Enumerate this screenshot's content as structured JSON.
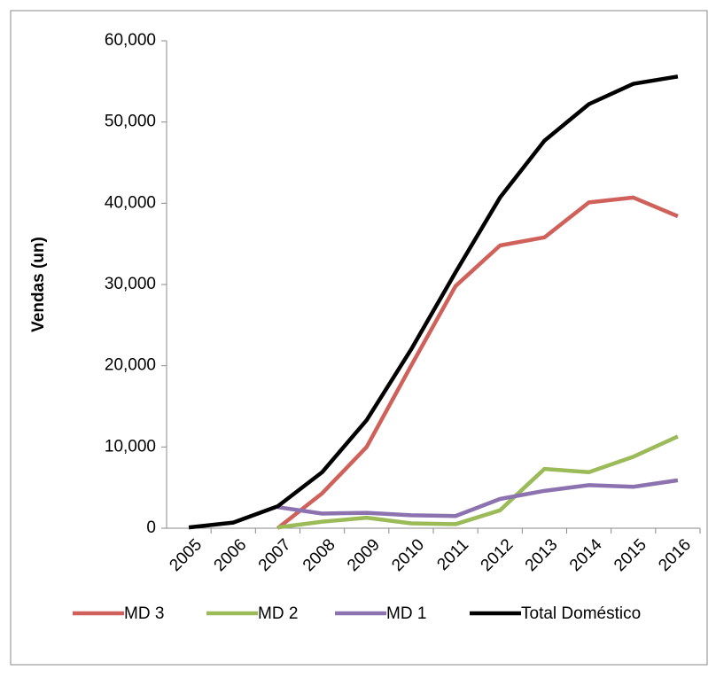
{
  "chart_data": {
    "type": "line",
    "y_label": "Vendas (un)",
    "categories": [
      "2005",
      "2006",
      "2007",
      "2008",
      "2009",
      "2010",
      "2011",
      "2012",
      "2013",
      "2014",
      "2015",
      "2016"
    ],
    "series": [
      {
        "name": "MD 3",
        "color": "#d0605a",
        "values": [
          null,
          null,
          0,
          4300,
          10000,
          20000,
          29800,
          34800,
          35800,
          40100,
          40700,
          38400
        ]
      },
      {
        "name": "MD 2",
        "color": "#9bbb59",
        "values": [
          null,
          null,
          100,
          800,
          1300,
          600,
          500,
          2200,
          7300,
          6900,
          8800,
          11300
        ]
      },
      {
        "name": "MD 1",
        "color": "#8d72b0",
        "values": [
          null,
          null,
          2600,
          1800,
          1900,
          1600,
          1500,
          3600,
          4600,
          5300,
          5100,
          5900
        ]
      },
      {
        "name": "Total Doméstico",
        "color": "#000000",
        "values": [
          100,
          700,
          2700,
          6900,
          13300,
          22000,
          31500,
          40700,
          47700,
          52200,
          54700,
          55600
        ]
      }
    ],
    "ylim": [
      0,
      60000
    ],
    "yticks": [
      0,
      {
        "value": 10000,
        "label": "10,000"
      },
      {
        "value": 20000,
        "label": "20,000"
      },
      {
        "value": 30000,
        "label": "30,000"
      },
      {
        "value": 40000,
        "label": "40,000"
      },
      {
        "value": 50000,
        "label": "50,000"
      },
      {
        "value": 60000,
        "label": "60,000"
      }
    ],
    "grid": false
  }
}
